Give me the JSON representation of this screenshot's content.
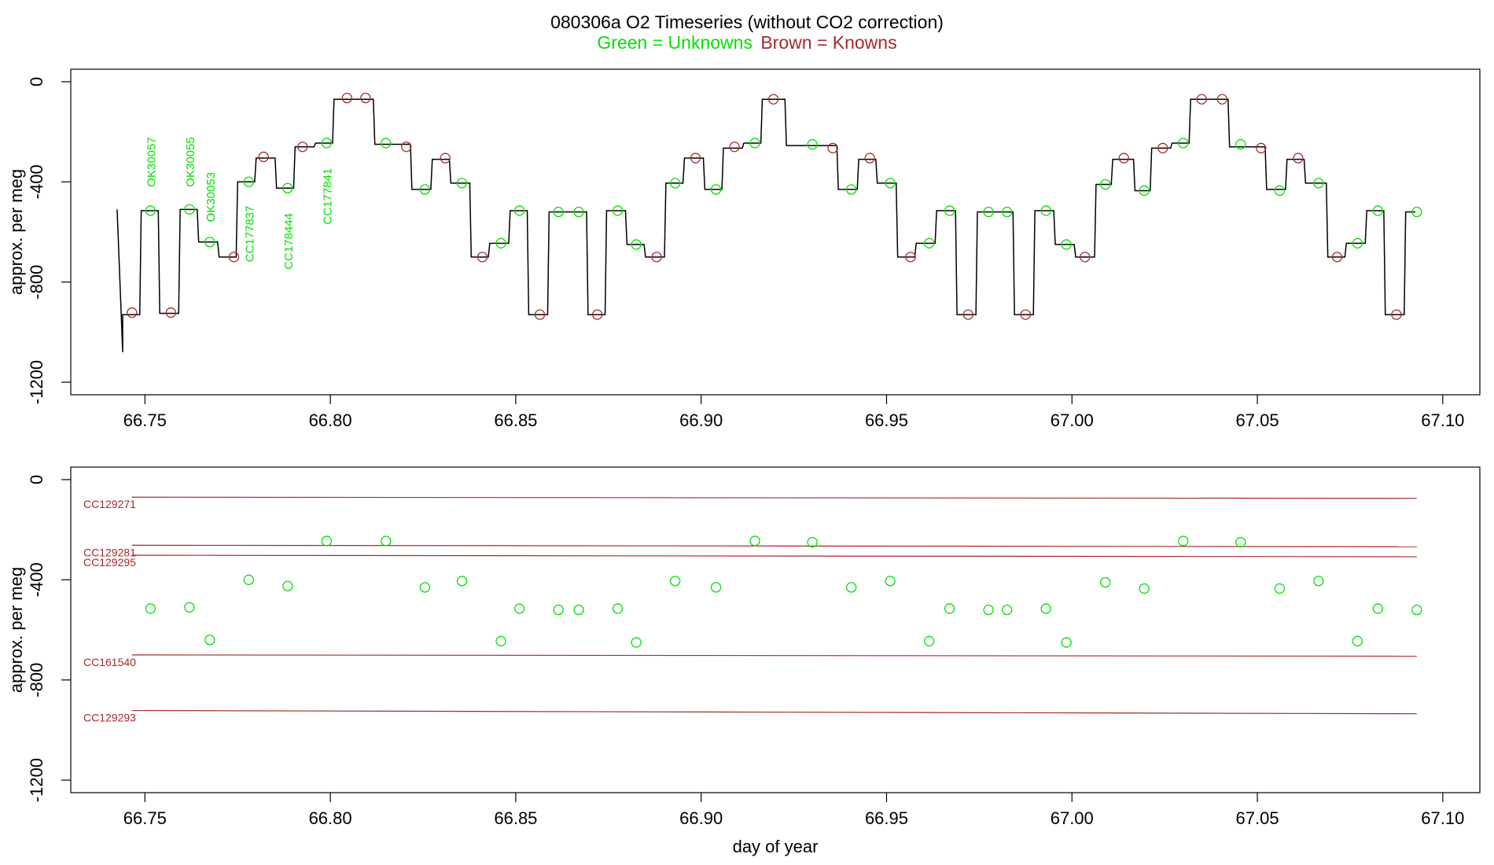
{
  "title": {
    "main": "080306a   O2 Timeseries (without CO2 correction)",
    "legend_unknown": "Green = Unknowns",
    "legend_known": "Brown = Knowns"
  },
  "colors": {
    "unknown": "#00e000",
    "known": "#a52a2a",
    "trace": "#000000",
    "axis": "#000000"
  },
  "chart_data": [
    {
      "type": "line",
      "panel": "top",
      "xlabel": "",
      "ylabel": "approx. per meg",
      "xlim": [
        66.73,
        67.11
      ],
      "ylim": [
        -1250,
        50
      ],
      "xticks": [
        66.75,
        66.8,
        66.85,
        66.9,
        66.95,
        67.0,
        67.05,
        67.1
      ],
      "xtick_labels": [
        "66.75",
        "66.80",
        "66.85",
        "66.90",
        "66.95",
        "67.00",
        "67.05",
        "67.10"
      ],
      "yticks": [
        0,
        -400,
        -800,
        -1200
      ],
      "ytick_labels": [
        "0",
        "-400",
        "-800",
        "-1200"
      ],
      "trace_levels": [
        {
          "x0": 66.7425,
          "x1": 66.744,
          "y": -510
        },
        {
          "x0": 66.744,
          "x1": 66.749,
          "y": -930
        },
        {
          "x0": 66.749,
          "x1": 66.754,
          "y": -515
        },
        {
          "x0": 66.754,
          "x1": 66.7595,
          "y": -925
        },
        {
          "x0": 66.7595,
          "x1": 66.7645,
          "y": -510
        },
        {
          "x0": 66.7645,
          "x1": 66.77,
          "y": -640
        },
        {
          "x0": 66.77,
          "x1": 66.775,
          "y": -700
        },
        {
          "x0": 66.775,
          "x1": 66.78,
          "y": -400
        },
        {
          "x0": 66.78,
          "x1": 66.7855,
          "y": -305
        },
        {
          "x0": 66.7855,
          "x1": 66.7905,
          "y": -425
        },
        {
          "x0": 66.7905,
          "x1": 66.796,
          "y": -260
        },
        {
          "x0": 66.796,
          "x1": 66.801,
          "y": -245
        },
        {
          "x0": 66.801,
          "x1": 66.812,
          "y": -70
        },
        {
          "x0": 66.812,
          "x1": 66.822,
          "y": -250
        },
        {
          "x0": 66.822,
          "x1": 66.8275,
          "y": -430
        },
        {
          "x0": 66.8275,
          "x1": 66.8325,
          "y": -310
        },
        {
          "x0": 66.8325,
          "x1": 66.838,
          "y": -405
        },
        {
          "x0": 66.838,
          "x1": 66.843,
          "y": -700
        },
        {
          "x0": 66.843,
          "x1": 66.8485,
          "y": -645
        },
        {
          "x0": 66.8485,
          "x1": 66.8535,
          "y": -515
        },
        {
          "x0": 66.8535,
          "x1": 66.859,
          "y": -930
        },
        {
          "x0": 66.859,
          "x1": 66.8695,
          "y": -520
        },
        {
          "x0": 66.8695,
          "x1": 66.8745,
          "y": -930
        },
        {
          "x0": 66.8745,
          "x1": 66.88,
          "y": -515
        },
        {
          "x0": 66.88,
          "x1": 66.885,
          "y": -650
        },
        {
          "x0": 66.885,
          "x1": 66.8905,
          "y": -700
        },
        {
          "x0": 66.8905,
          "x1": 66.8955,
          "y": -405
        },
        {
          "x0": 66.8955,
          "x1": 66.901,
          "y": -305
        },
        {
          "x0": 66.901,
          "x1": 66.906,
          "y": -430
        },
        {
          "x0": 66.906,
          "x1": 66.9115,
          "y": -265
        },
        {
          "x0": 66.9115,
          "x1": 66.9165,
          "y": -245
        },
        {
          "x0": 66.9165,
          "x1": 66.923,
          "y": -70
        },
        {
          "x0": 66.923,
          "x1": 66.937,
          "y": -255
        },
        {
          "x0": 66.937,
          "x1": 66.9425,
          "y": -430
        },
        {
          "x0": 66.9425,
          "x1": 66.9475,
          "y": -310
        },
        {
          "x0": 66.9475,
          "x1": 66.953,
          "y": -405
        },
        {
          "x0": 66.953,
          "x1": 66.958,
          "y": -700
        },
        {
          "x0": 66.958,
          "x1": 66.9635,
          "y": -645
        },
        {
          "x0": 66.9635,
          "x1": 66.969,
          "y": -515
        },
        {
          "x0": 66.969,
          "x1": 66.9745,
          "y": -930
        },
        {
          "x0": 66.9745,
          "x1": 66.9845,
          "y": -520
        },
        {
          "x0": 66.9845,
          "x1": 66.99,
          "y": -930
        },
        {
          "x0": 66.99,
          "x1": 66.9955,
          "y": -515
        },
        {
          "x0": 66.9955,
          "x1": 67.001,
          "y": -650
        },
        {
          "x0": 67.001,
          "x1": 67.0065,
          "y": -700
        },
        {
          "x0": 67.0065,
          "x1": 67.011,
          "y": -410
        },
        {
          "x0": 67.011,
          "x1": 67.017,
          "y": -310
        },
        {
          "x0": 67.017,
          "x1": 67.0215,
          "y": -435
        },
        {
          "x0": 67.0215,
          "x1": 67.027,
          "y": -265
        },
        {
          "x0": 67.027,
          "x1": 67.032,
          "y": -245
        },
        {
          "x0": 67.032,
          "x1": 67.0425,
          "y": -70
        },
        {
          "x0": 67.0425,
          "x1": 67.0525,
          "y": -260
        },
        {
          "x0": 67.0525,
          "x1": 67.058,
          "y": -430
        },
        {
          "x0": 67.058,
          "x1": 67.063,
          "y": -310
        },
        {
          "x0": 67.063,
          "x1": 67.069,
          "y": -405
        },
        {
          "x0": 67.069,
          "x1": 67.074,
          "y": -700
        },
        {
          "x0": 67.074,
          "x1": 67.0795,
          "y": -645
        },
        {
          "x0": 67.0795,
          "x1": 67.0845,
          "y": -515
        },
        {
          "x0": 67.0845,
          "x1": 67.09,
          "y": -930
        },
        {
          "x0": 67.09,
          "x1": 67.093,
          "y": -520
        }
      ],
      "knowns": [
        {
          "x": 66.7465,
          "y": -922
        },
        {
          "x": 66.757,
          "y": -922
        },
        {
          "x": 66.774,
          "y": -700
        },
        {
          "x": 66.782,
          "y": -300
        },
        {
          "x": 66.7925,
          "y": -260
        },
        {
          "x": 66.8045,
          "y": -65
        },
        {
          "x": 66.8095,
          "y": -65
        },
        {
          "x": 66.8205,
          "y": -260
        },
        {
          "x": 66.831,
          "y": -305
        },
        {
          "x": 66.841,
          "y": -700
        },
        {
          "x": 66.8565,
          "y": -930
        },
        {
          "x": 66.872,
          "y": -930
        },
        {
          "x": 66.888,
          "y": -700
        },
        {
          "x": 66.8985,
          "y": -305
        },
        {
          "x": 66.909,
          "y": -260
        },
        {
          "x": 66.9195,
          "y": -70
        },
        {
          "x": 66.9355,
          "y": -265
        },
        {
          "x": 66.9455,
          "y": -305
        },
        {
          "x": 66.9565,
          "y": -700
        },
        {
          "x": 66.972,
          "y": -930
        },
        {
          "x": 66.9875,
          "y": -930
        },
        {
          "x": 67.0035,
          "y": -700
        },
        {
          "x": 67.014,
          "y": -305
        },
        {
          "x": 67.0245,
          "y": -265
        },
        {
          "x": 67.035,
          "y": -70
        },
        {
          "x": 67.0405,
          "y": -70
        },
        {
          "x": 67.051,
          "y": -265
        },
        {
          "x": 67.061,
          "y": -305
        },
        {
          "x": 67.0715,
          "y": -700
        },
        {
          "x": 67.0875,
          "y": -930
        }
      ],
      "unknowns": [
        {
          "x": 66.7515,
          "y": -515
        },
        {
          "x": 66.762,
          "y": -510
        },
        {
          "x": 66.7675,
          "y": -640
        },
        {
          "x": 66.778,
          "y": -400
        },
        {
          "x": 66.7885,
          "y": -425
        },
        {
          "x": 66.799,
          "y": -245
        },
        {
          "x": 66.815,
          "y": -245
        },
        {
          "x": 66.8255,
          "y": -430
        },
        {
          "x": 66.8355,
          "y": -405
        },
        {
          "x": 66.846,
          "y": -645
        },
        {
          "x": 66.851,
          "y": -515
        },
        {
          "x": 66.8615,
          "y": -520
        },
        {
          "x": 66.867,
          "y": -520
        },
        {
          "x": 66.8775,
          "y": -515
        },
        {
          "x": 66.8825,
          "y": -650
        },
        {
          "x": 66.893,
          "y": -405
        },
        {
          "x": 66.904,
          "y": -430
        },
        {
          "x": 66.9145,
          "y": -245
        },
        {
          "x": 66.93,
          "y": -250
        },
        {
          "x": 66.9405,
          "y": -430
        },
        {
          "x": 66.951,
          "y": -405
        },
        {
          "x": 66.9615,
          "y": -645
        },
        {
          "x": 66.967,
          "y": -515
        },
        {
          "x": 66.9775,
          "y": -520
        },
        {
          "x": 66.9825,
          "y": -520
        },
        {
          "x": 66.993,
          "y": -515
        },
        {
          "x": 66.9985,
          "y": -650
        },
        {
          "x": 67.009,
          "y": -410
        },
        {
          "x": 67.0195,
          "y": -435
        },
        {
          "x": 67.03,
          "y": -245
        },
        {
          "x": 67.0455,
          "y": -250
        },
        {
          "x": 67.056,
          "y": -435
        },
        {
          "x": 67.0665,
          "y": -405
        },
        {
          "x": 67.077,
          "y": -645
        },
        {
          "x": 67.0825,
          "y": -515
        },
        {
          "x": 67.093,
          "y": -520
        }
      ],
      "sample_labels": [
        {
          "text": "OK30057",
          "x": 66.7515,
          "y": -420
        },
        {
          "text": "OK30055",
          "x": 66.762,
          "y": -420
        },
        {
          "text": "OK30053",
          "x": 66.7675,
          "y": -560
        },
        {
          "text": "CC177837",
          "x": 66.778,
          "y": -720
        },
        {
          "text": "CC178444",
          "x": 66.7885,
          "y": -750
        },
        {
          "text": "CC177841",
          "x": 66.799,
          "y": -570
        }
      ]
    },
    {
      "type": "scatter",
      "panel": "bottom",
      "xlabel": "day of year",
      "ylabel": "approx. per meg",
      "xlim": [
        66.73,
        67.11
      ],
      "ylim": [
        -1250,
        50
      ],
      "xticks": [
        66.75,
        66.8,
        66.85,
        66.9,
        66.95,
        67.0,
        67.05,
        67.1
      ],
      "xtick_labels": [
        "66.75",
        "66.80",
        "66.85",
        "66.90",
        "66.95",
        "67.00",
        "67.05",
        "67.10"
      ],
      "yticks": [
        0,
        -400,
        -800,
        -1200
      ],
      "ytick_labels": [
        "0",
        "-400",
        "-800",
        "-1200"
      ],
      "reference_lines": [
        {
          "name": "CC129271",
          "x0": 66.7465,
          "y0": -70,
          "x1": 67.093,
          "y1": -75
        },
        {
          "name": "CC129281",
          "x0": 66.7465,
          "y0": -262,
          "x1": 67.093,
          "y1": -268
        },
        {
          "name": "CC129295",
          "x0": 66.7465,
          "y0": -302,
          "x1": 67.093,
          "y1": -308
        },
        {
          "name": "CC161540",
          "x0": 66.7465,
          "y0": -700,
          "x1": 67.093,
          "y1": -705
        },
        {
          "name": "CC129293",
          "x0": 66.7465,
          "y0": -922,
          "x1": 67.093,
          "y1": -935
        }
      ],
      "unknowns": [
        {
          "x": 66.7515,
          "y": -515
        },
        {
          "x": 66.762,
          "y": -510
        },
        {
          "x": 66.7675,
          "y": -640
        },
        {
          "x": 66.778,
          "y": -400
        },
        {
          "x": 66.7885,
          "y": -425
        },
        {
          "x": 66.799,
          "y": -245
        },
        {
          "x": 66.815,
          "y": -245
        },
        {
          "x": 66.8255,
          "y": -430
        },
        {
          "x": 66.8355,
          "y": -405
        },
        {
          "x": 66.846,
          "y": -645
        },
        {
          "x": 66.851,
          "y": -515
        },
        {
          "x": 66.8615,
          "y": -520
        },
        {
          "x": 66.867,
          "y": -520
        },
        {
          "x": 66.8775,
          "y": -515
        },
        {
          "x": 66.8825,
          "y": -650
        },
        {
          "x": 66.893,
          "y": -405
        },
        {
          "x": 66.904,
          "y": -430
        },
        {
          "x": 66.9145,
          "y": -245
        },
        {
          "x": 66.93,
          "y": -250
        },
        {
          "x": 66.9405,
          "y": -430
        },
        {
          "x": 66.951,
          "y": -405
        },
        {
          "x": 66.9615,
          "y": -645
        },
        {
          "x": 66.967,
          "y": -515
        },
        {
          "x": 66.9775,
          "y": -520
        },
        {
          "x": 66.9825,
          "y": -520
        },
        {
          "x": 66.993,
          "y": -515
        },
        {
          "x": 66.9985,
          "y": -650
        },
        {
          "x": 67.009,
          "y": -410
        },
        {
          "x": 67.0195,
          "y": -435
        },
        {
          "x": 67.03,
          "y": -245
        },
        {
          "x": 67.0455,
          "y": -250
        },
        {
          "x": 67.056,
          "y": -435
        },
        {
          "x": 67.0665,
          "y": -405
        },
        {
          "x": 67.077,
          "y": -645
        },
        {
          "x": 67.0825,
          "y": -515
        },
        {
          "x": 67.093,
          "y": -520
        }
      ]
    }
  ]
}
